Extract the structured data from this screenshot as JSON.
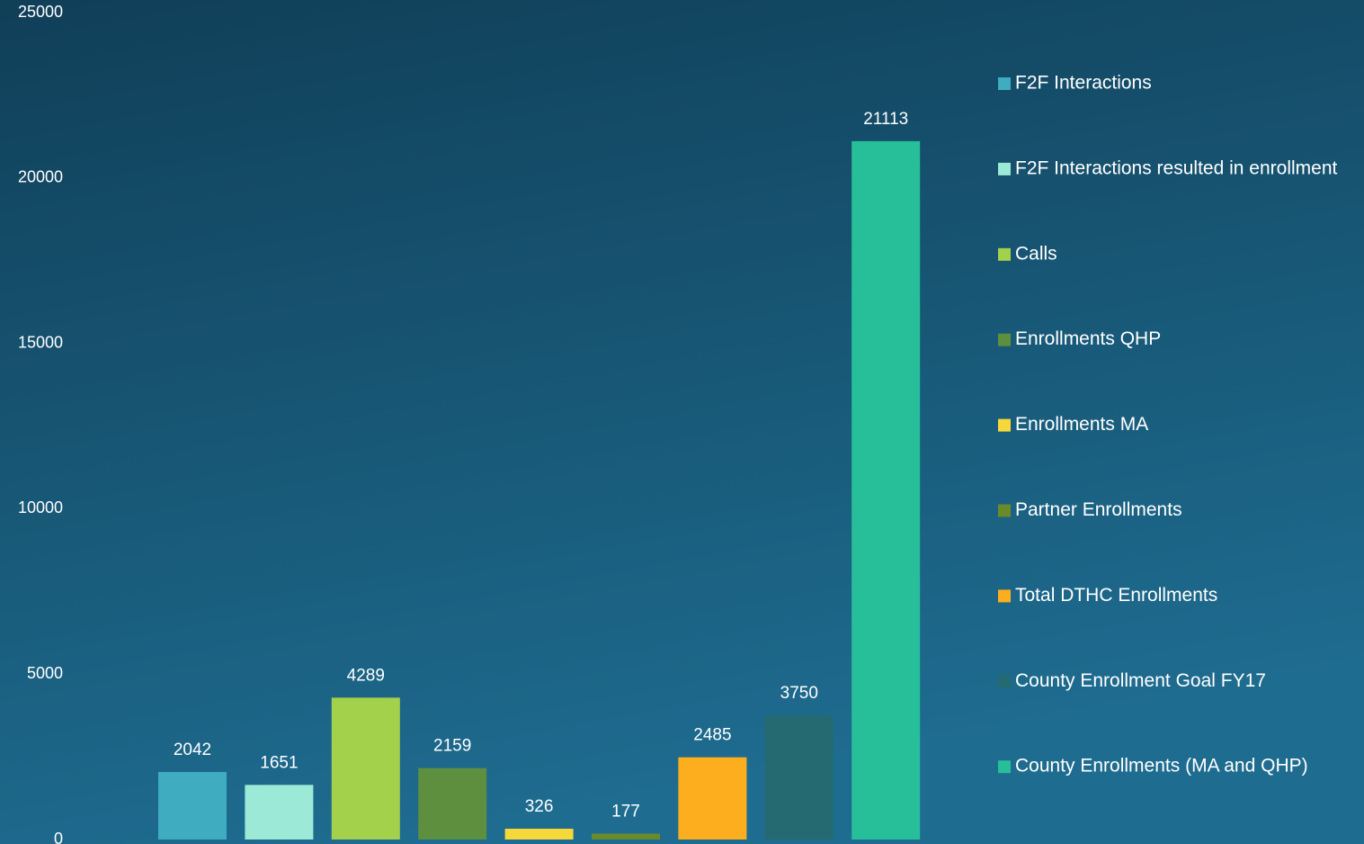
{
  "chart_data": {
    "type": "bar",
    "series": [
      {
        "name": "F2F Interactions",
        "color": "#3fadbf",
        "values": [
          2042
        ]
      },
      {
        "name": "F2F Interactions resulted in enrollment",
        "color": "#9de9d7",
        "values": [
          1651
        ]
      },
      {
        "name": "Calls",
        "color": "#a3d14b",
        "values": [
          4289
        ]
      },
      {
        "name": "Enrollments QHP",
        "color": "#5e8f3e",
        "values": [
          2159
        ]
      },
      {
        "name": "Enrollments MA",
        "color": "#f7d83b",
        "values": [
          326
        ]
      },
      {
        "name": "Partner Enrollments",
        "color": "#6b8a2a",
        "values": [
          177
        ]
      },
      {
        "name": "Total DTHC Enrollments",
        "color": "#fcae1e",
        "values": [
          2485
        ]
      },
      {
        "name": "County Enrollment Goal FY17",
        "color": "#256a70",
        "values": [
          3750
        ]
      },
      {
        "name": "County Enrollments (MA and QHP)",
        "color": "#27bf9a",
        "values": [
          21113
        ]
      }
    ],
    "ylim": [
      0,
      25000
    ],
    "yticks": [
      0,
      5000,
      10000,
      15000,
      20000,
      25000
    ],
    "grid": false,
    "legend": "right"
  }
}
